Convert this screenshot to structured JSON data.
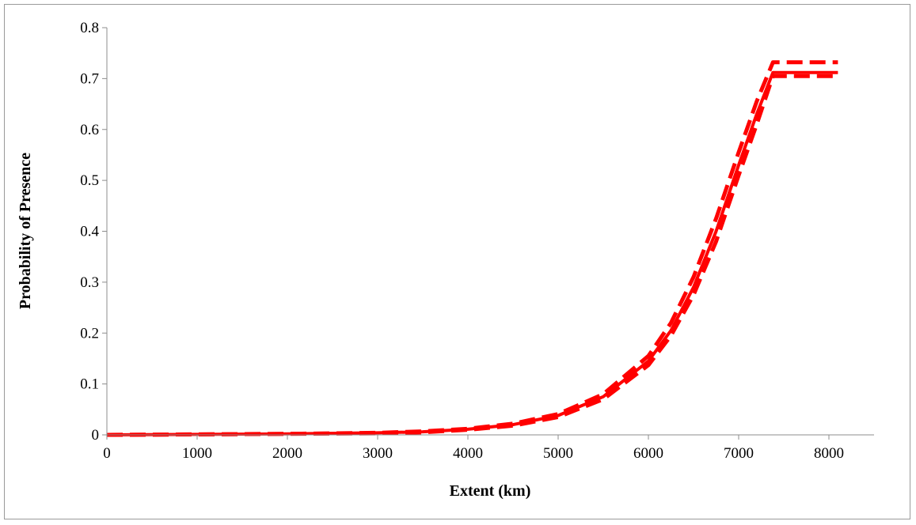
{
  "chart_data": {
    "type": "line",
    "title": "",
    "xlabel": "Extent (km)",
    "ylabel": "Probability of Presence",
    "xlim": [
      0,
      8500
    ],
    "ylim": [
      0,
      0.8
    ],
    "x_ticks": [
      "0",
      "1000",
      "2000",
      "3000",
      "4000",
      "5000",
      "6000",
      "7000",
      "8000"
    ],
    "y_ticks": [
      "0",
      "0.1",
      "0.2",
      "0.3",
      "0.4",
      "0.5",
      "0.6",
      "0.7",
      "0.8"
    ],
    "grid": false,
    "legend": "none",
    "series": [
      {
        "style": "solid",
        "color": "#ff0000",
        "x": [
          0,
          1000,
          2000,
          3000,
          3500,
          4000,
          4500,
          5000,
          5500,
          6000,
          6250,
          6500,
          6750,
          7000,
          7200,
          7380,
          8100
        ],
        "y": [
          0,
          0.001,
          0.002,
          0.004,
          0.006,
          0.011,
          0.02,
          0.038,
          0.075,
          0.145,
          0.205,
          0.29,
          0.4,
          0.53,
          0.63,
          0.712,
          0.712
        ]
      },
      {
        "style": "dashed",
        "color": "#ff0000",
        "x": [
          0,
          1000,
          2000,
          3000,
          3500,
          4000,
          4500,
          5000,
          5500,
          6000,
          6250,
          6500,
          6750,
          7000,
          7200,
          7380,
          8100
        ],
        "y": [
          0,
          0.001,
          0.002,
          0.004,
          0.007,
          0.012,
          0.022,
          0.041,
          0.08,
          0.155,
          0.22,
          0.31,
          0.425,
          0.555,
          0.655,
          0.732,
          0.732
        ]
      },
      {
        "style": "dashed",
        "color": "#ff0000",
        "x": [
          0,
          1000,
          2000,
          3000,
          3500,
          4000,
          4500,
          5000,
          5500,
          6000,
          6250,
          6500,
          6750,
          7000,
          7200,
          7380,
          8100
        ],
        "y": [
          0,
          0.001,
          0.002,
          0.003,
          0.005,
          0.01,
          0.018,
          0.035,
          0.07,
          0.137,
          0.195,
          0.275,
          0.38,
          0.51,
          0.61,
          0.705,
          0.705
        ]
      }
    ]
  }
}
